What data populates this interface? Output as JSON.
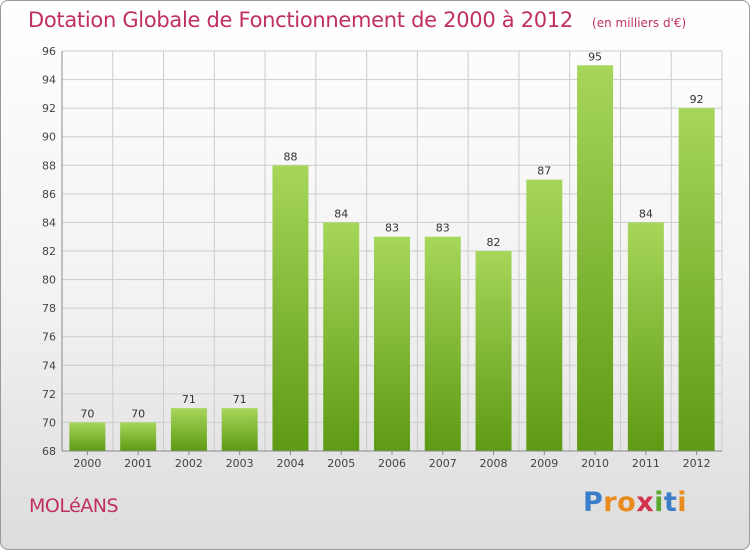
{
  "title": "Dotation Globale de Fonctionnement de 2000 à 2012",
  "unit": "(en milliers d'€)",
  "commune": "MOLéANS",
  "logo": {
    "letters": [
      "P",
      "r",
      "o",
      "x",
      "i",
      "t",
      "i"
    ],
    "colors": [
      "#3a7dc8",
      "#e98a1e",
      "#e98a1e",
      "#d4334f",
      "#5aaa2f",
      "#3a7dc8",
      "#e98a1e"
    ]
  },
  "colors": {
    "bar_light": "#a6d65a",
    "bar_dark": "#5e9a14",
    "grid": "#cccccc"
  },
  "chart_data": {
    "type": "bar",
    "categories": [
      "2000",
      "2001",
      "2002",
      "2003",
      "2004",
      "2005",
      "2006",
      "2007",
      "2008",
      "2009",
      "2010",
      "2011",
      "2012"
    ],
    "values": [
      70,
      70,
      71,
      71,
      88,
      84,
      83,
      83,
      82,
      87,
      95,
      84,
      92
    ],
    "yticks": [
      68,
      70,
      72,
      74,
      76,
      78,
      80,
      82,
      84,
      86,
      88,
      90,
      92,
      94,
      96
    ],
    "ylim": [
      68,
      96
    ],
    "grid": true,
    "title": "Dotation Globale de Fonctionnement de 2000 à 2012",
    "xlabel": "",
    "ylabel": ""
  }
}
